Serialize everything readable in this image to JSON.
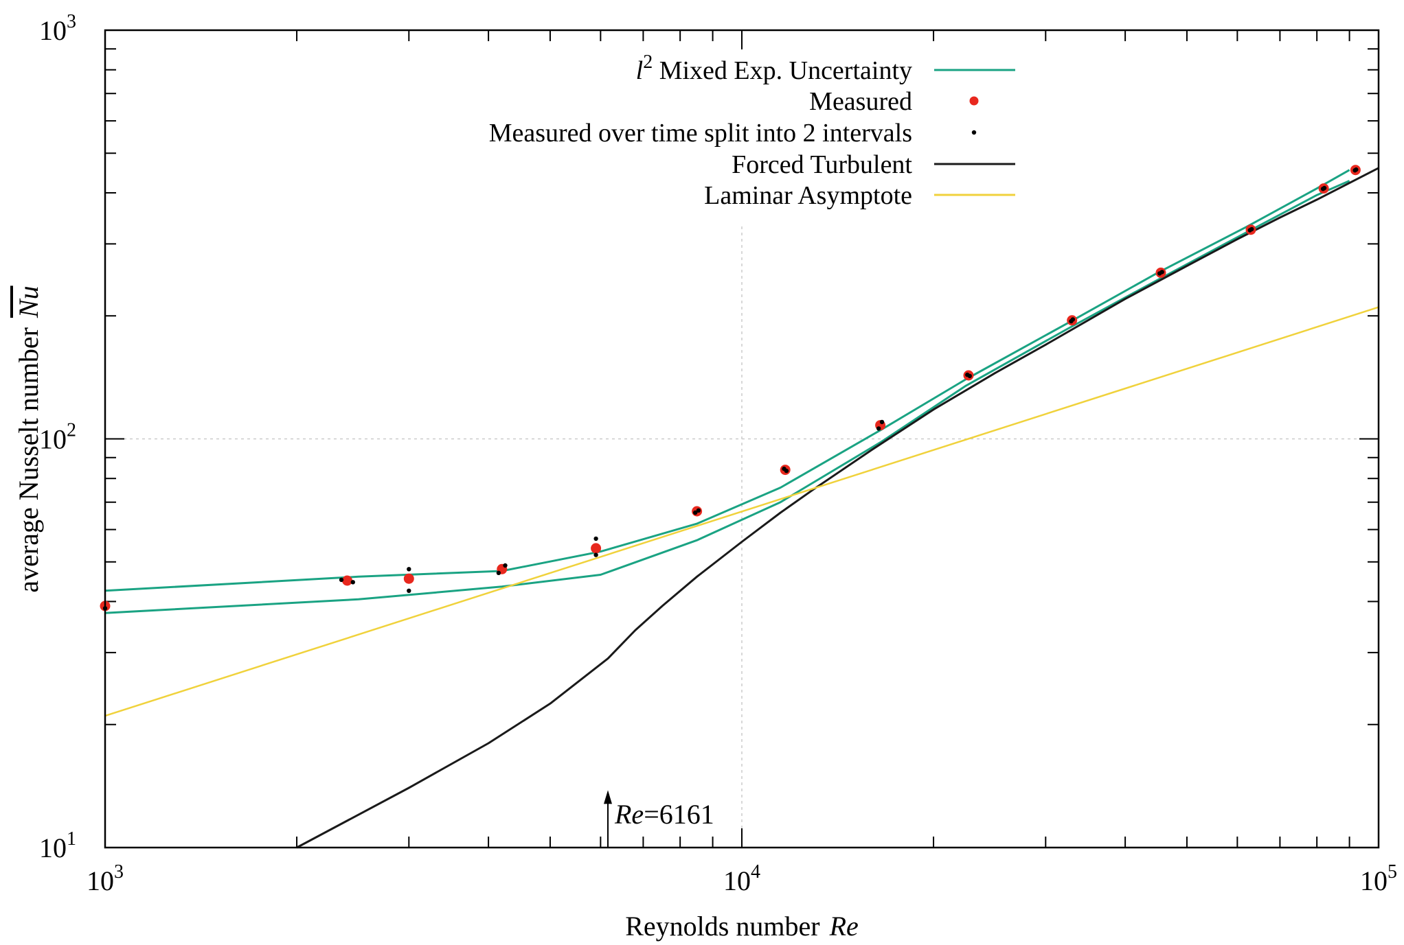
{
  "chart_data": {
    "type": "line",
    "x_scale": "log",
    "y_scale": "log",
    "xlim": [
      1000,
      100000
    ],
    "ylim": [
      10,
      1000
    ],
    "grid": "dashed lines at 10^4 and 10^2",
    "legend_position": "top-center",
    "xlabel": {
      "main": "Reynolds number",
      "symbol": "Re"
    },
    "ylabel": {
      "main": "average Nusselt number",
      "symbol": "Nu"
    },
    "x_ticks": [
      {
        "value": 1000,
        "base": "10",
        "exp": "3"
      },
      {
        "value": 10000,
        "base": "10",
        "exp": "4"
      },
      {
        "value": 100000,
        "base": "10",
        "exp": "5"
      }
    ],
    "y_ticks": [
      {
        "value": 10,
        "base": "10",
        "exp": "1"
      },
      {
        "value": 100,
        "base": "10",
        "exp": "2"
      },
      {
        "value": 1000,
        "base": "10",
        "exp": "3"
      }
    ],
    "annotation": {
      "x": 6161,
      "y_from": 10,
      "y_to": 13.5,
      "symbol": "Re",
      "text": "=6161"
    },
    "series": [
      {
        "name_prefix": "l",
        "name_sup": "2",
        "name": " Mixed Exp. Uncertainty",
        "kind": "line",
        "color": "#1aa383",
        "lines": [
          {
            "x": [
              1000,
              2500,
              4200,
              6000,
              8500,
              11500,
              16500,
              22500,
              32500,
              45000,
              62000,
              80000,
              90000
            ],
            "y": [
              42.5,
              46.0,
              47.5,
              53.0,
              62.0,
              76.0,
              105.0,
              140.0,
              192.0,
              255.0,
              330.0,
              410.0,
              455.0
            ]
          },
          {
            "x": [
              1000,
              2500,
              4200,
              6000,
              8500,
              11500,
              16500,
              22500,
              32500,
              45000,
              62000,
              80000,
              90000
            ],
            "y": [
              37.5,
              40.5,
              43.5,
              46.5,
              56.5,
              70.0,
              98.0,
              135.0,
              186.0,
              245.0,
              320.0,
              395.0,
              428.0
            ]
          }
        ]
      },
      {
        "name": "Measured",
        "kind": "points",
        "color": "#e8281e",
        "x": [
          1000,
          2400,
          3000,
          4200,
          5900,
          8500,
          11700,
          16500,
          22700,
          33000,
          45500,
          63000,
          82000,
          92000
        ],
        "y": [
          39.0,
          45.0,
          45.5,
          48.0,
          54.0,
          66.5,
          84.0,
          108.0,
          143.0,
          195.0,
          255.0,
          325.0,
          410.0,
          455.0
        ]
      },
      {
        "name": "Measured over time split into 2 intervals",
        "kind": "points",
        "color": "#000000",
        "x": [
          1000,
          2350,
          2450,
          3000,
          3000,
          4150,
          4250,
          5900,
          5900,
          8450,
          8550,
          11650,
          11750,
          16400,
          16600,
          22600,
          22800,
          32900,
          33100,
          45300,
          45700,
          62800,
          63200,
          81800,
          82200,
          91800,
          92200
        ],
        "y": [
          38.5,
          45.2,
          44.6,
          48.0,
          42.5,
          47.0,
          49.0,
          57.0,
          52.0,
          66.0,
          66.8,
          84.5,
          83.5,
          106.0,
          110.0,
          143.5,
          142.5,
          194.0,
          196.0,
          254.0,
          256.0,
          324.0,
          326.0,
          409.0,
          411.0,
          454.0,
          456.0
        ]
      },
      {
        "name": "Forced Turbulent",
        "kind": "line",
        "color": "#1a1a1a",
        "x": [
          2000,
          3000,
          4000,
          5000,
          6161,
          6800,
          7500,
          8500,
          10000,
          11500,
          13000,
          16000,
          20000,
          25000,
          30000,
          40000,
          50000,
          60000,
          70000,
          80000,
          100000
        ],
        "y": [
          10.0,
          14.0,
          18.0,
          22.5,
          29.0,
          34.0,
          39.0,
          46.0,
          56.0,
          66.0,
          75.5,
          94.0,
          118.0,
          145.0,
          170.0,
          220.0,
          265.0,
          308.0,
          348.0,
          385.0,
          460.0
        ]
      },
      {
        "name": "Laminar Asymptote",
        "kind": "line",
        "color": "#f0d23c",
        "x": [
          1000,
          100000
        ],
        "y": [
          21.0,
          210.0
        ]
      }
    ]
  }
}
